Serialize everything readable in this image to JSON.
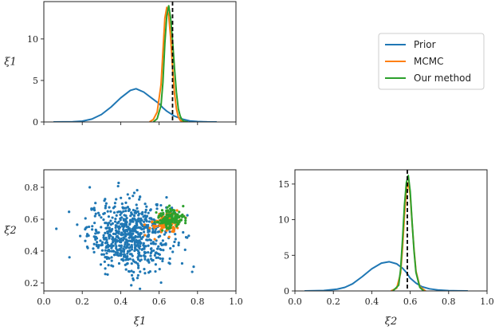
{
  "colors": {
    "prior": "#1f77b4",
    "mcmc": "#ff7f0e",
    "ours": "#2ca02c",
    "truth": "#000000"
  },
  "legend": {
    "placement": "top-right",
    "entries": [
      "Prior",
      "MCMC",
      "Our method"
    ]
  },
  "chart_data": [
    {
      "id": "xi1_marginal",
      "type": "line",
      "title": "",
      "xlabel": "",
      "ylabel": "ξ1",
      "xlim": [
        0,
        1
      ],
      "ylim": [
        0,
        14.5
      ],
      "xticks": [
        0.0,
        0.2,
        0.4,
        0.6,
        0.8,
        1.0
      ],
      "yticks": [
        0,
        5,
        10
      ],
      "ytick_labels": [
        "0",
        "5",
        "10"
      ],
      "truth_x": 0.67,
      "series": [
        {
          "name": "Prior",
          "color": "#1f77b4",
          "x": [
            0.05,
            0.15,
            0.2,
            0.25,
            0.3,
            0.35,
            0.4,
            0.45,
            0.48,
            0.52,
            0.56,
            0.6,
            0.62,
            0.64,
            0.66,
            0.68,
            0.72,
            0.76,
            0.8,
            0.85,
            0.9
          ],
          "y": [
            0,
            0.02,
            0.1,
            0.35,
            0.9,
            1.8,
            2.9,
            3.8,
            4.0,
            3.6,
            2.9,
            2.2,
            1.7,
            1.3,
            1.0,
            0.7,
            0.35,
            0.12,
            0.05,
            0.01,
            0
          ]
        },
        {
          "name": "MCMC",
          "color": "#ff7f0e",
          "x": [
            0.55,
            0.57,
            0.59,
            0.61,
            0.62,
            0.63,
            0.64,
            0.65,
            0.66,
            0.67,
            0.68,
            0.69,
            0.7,
            0.71,
            0.72,
            0.74
          ],
          "y": [
            0,
            0.3,
            1.2,
            4.5,
            8.5,
            12.5,
            13.8,
            12.8,
            10.2,
            6.5,
            3.5,
            1.6,
            0.6,
            0.2,
            0.05,
            0
          ]
        },
        {
          "name": "Our method",
          "color": "#2ca02c",
          "x": [
            0.57,
            0.59,
            0.61,
            0.62,
            0.63,
            0.64,
            0.65,
            0.66,
            0.67,
            0.68,
            0.69,
            0.7,
            0.71,
            0.72,
            0.73,
            0.75
          ],
          "y": [
            0,
            0.4,
            2.0,
            4.8,
            9.5,
            12.8,
            14.0,
            12.5,
            9.8,
            6.5,
            3.6,
            1.6,
            0.7,
            0.25,
            0.08,
            0
          ]
        }
      ]
    },
    {
      "id": "joint_scatter",
      "type": "scatter",
      "title": "",
      "xlabel": "ξ1",
      "ylabel": "ξ2",
      "xlim": [
        0,
        1
      ],
      "ylim": [
        0.15,
        0.91
      ],
      "xticks": [
        0.0,
        0.2,
        0.4,
        0.6,
        0.8,
        1.0
      ],
      "xtick_labels": [
        "0.0",
        "0.2",
        "0.4",
        "0.6",
        "0.8",
        "1.0"
      ],
      "yticks": [
        0.2,
        0.4,
        0.6,
        0.8
      ],
      "ytick_labels": [
        "0.2",
        "0.4",
        "0.6",
        "0.8"
      ],
      "series": [
        {
          "name": "Prior",
          "color": "#1f77b4",
          "n": 700,
          "center": [
            0.45,
            0.5
          ],
          "spread": [
            0.11,
            0.11
          ]
        },
        {
          "name": "MCMC",
          "color": "#ff7f0e",
          "n": 110,
          "center": [
            0.64,
            0.58
          ],
          "spread": [
            0.035,
            0.035
          ]
        },
        {
          "name": "Our method",
          "color": "#2ca02c",
          "n": 150,
          "center": [
            0.66,
            0.6
          ],
          "spread": [
            0.035,
            0.032
          ]
        }
      ]
    },
    {
      "id": "xi2_marginal",
      "type": "line",
      "title": "",
      "xlabel": "ξ2",
      "ylabel": "",
      "xlim": [
        0,
        1
      ],
      "ylim": [
        0,
        17
      ],
      "xticks": [
        0.0,
        0.2,
        0.4,
        0.6,
        0.8,
        1.0
      ],
      "xtick_labels": [
        "0.0",
        "0.2",
        "0.4",
        "0.6",
        "0.8",
        "1.0"
      ],
      "yticks": [
        0,
        5,
        10,
        15
      ],
      "ytick_labels": [
        "0",
        "5",
        "10",
        "15"
      ],
      "truth_x": 0.585,
      "series": [
        {
          "name": "Prior",
          "color": "#1f77b4",
          "x": [
            0.05,
            0.15,
            0.22,
            0.26,
            0.3,
            0.35,
            0.4,
            0.45,
            0.49,
            0.53,
            0.56,
            0.58,
            0.6,
            0.63,
            0.66,
            0.7,
            0.75,
            0.8,
            0.85,
            0.9
          ],
          "y": [
            0,
            0.05,
            0.25,
            0.5,
            1.0,
            2.0,
            3.1,
            3.9,
            4.1,
            3.8,
            3.2,
            2.6,
            1.8,
            1.1,
            0.6,
            0.3,
            0.12,
            0.04,
            0.01,
            0
          ]
        },
        {
          "name": "MCMC",
          "color": "#ff7f0e",
          "x": [
            0.5,
            0.53,
            0.55,
            0.56,
            0.57,
            0.58,
            0.59,
            0.6,
            0.61,
            0.62,
            0.63,
            0.65,
            0.68
          ],
          "y": [
            0,
            0.4,
            2.5,
            6.0,
            10.5,
            14.2,
            15.2,
            13.5,
            9.5,
            5.8,
            2.8,
            0.6,
            0
          ]
        },
        {
          "name": "Our method",
          "color": "#2ca02c",
          "x": [
            0.51,
            0.54,
            0.55,
            0.56,
            0.57,
            0.58,
            0.59,
            0.6,
            0.61,
            0.62,
            0.63,
            0.65,
            0.67
          ],
          "y": [
            0,
            0.8,
            3.0,
            7.2,
            12.0,
            15.2,
            16.2,
            14.0,
            9.6,
            5.6,
            2.6,
            0.5,
            0
          ]
        }
      ]
    }
  ]
}
